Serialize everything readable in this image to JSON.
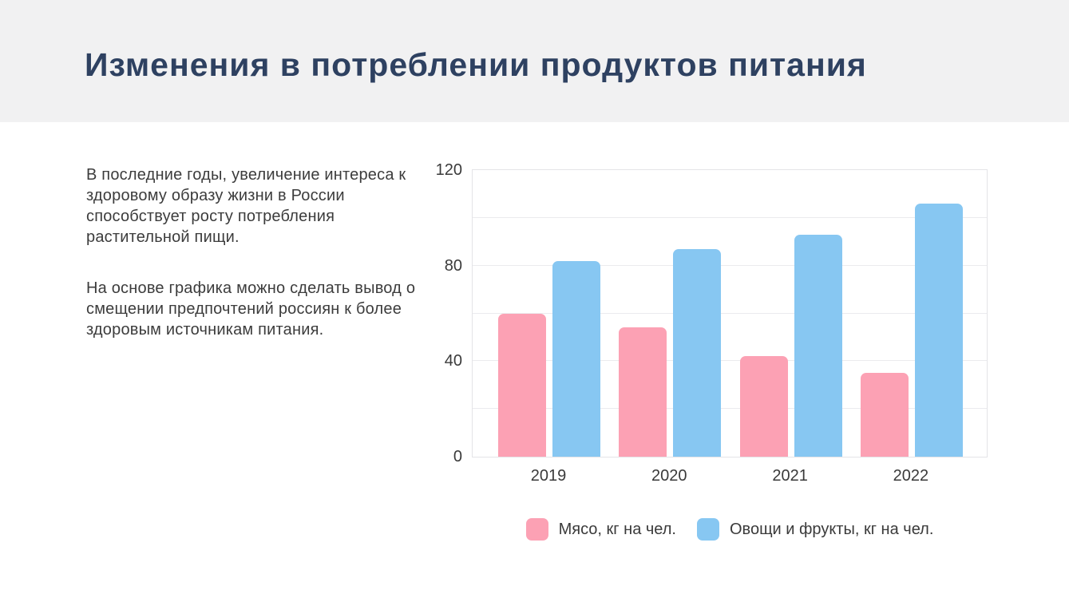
{
  "header": {
    "title": "Изменения в потреблении продуктов питания"
  },
  "article": {
    "paragraphs": [
      "В последние годы, увеличение интереса к здоровому образу жизни в России способствует росту потребления растительной пищи.",
      "На основе графика можно сделать вывод о смещении предпочтений россиян к более здоровым источникам питания."
    ]
  },
  "chart_data": {
    "type": "bar",
    "categories": [
      "2019",
      "2020",
      "2021",
      "2022"
    ],
    "series": [
      {
        "id": "meat",
        "name": "Мясо, кг на чел.",
        "color": "#FCA1B4",
        "values": [
          60,
          54,
          42,
          35
        ]
      },
      {
        "id": "veg",
        "name": "Овощи и фрукты, кг на чел.",
        "color": "#87C7F2",
        "values": [
          82,
          87,
          93,
          106
        ]
      }
    ],
    "title": "",
    "xlabel": "",
    "ylabel": "",
    "ylim": [
      0,
      120
    ],
    "yticks": [
      0,
      40,
      80,
      120
    ],
    "grid_step": 20,
    "grid": true,
    "legend_position": "bottom"
  },
  "colors": {
    "header_background": "#F1F1F2",
    "title_text": "#2E4161",
    "body_text": "#3C3C3C",
    "axis_text": "#3A3A3A",
    "gridline": "#EBEBEE",
    "plot_border": "#E4E4E7"
  }
}
